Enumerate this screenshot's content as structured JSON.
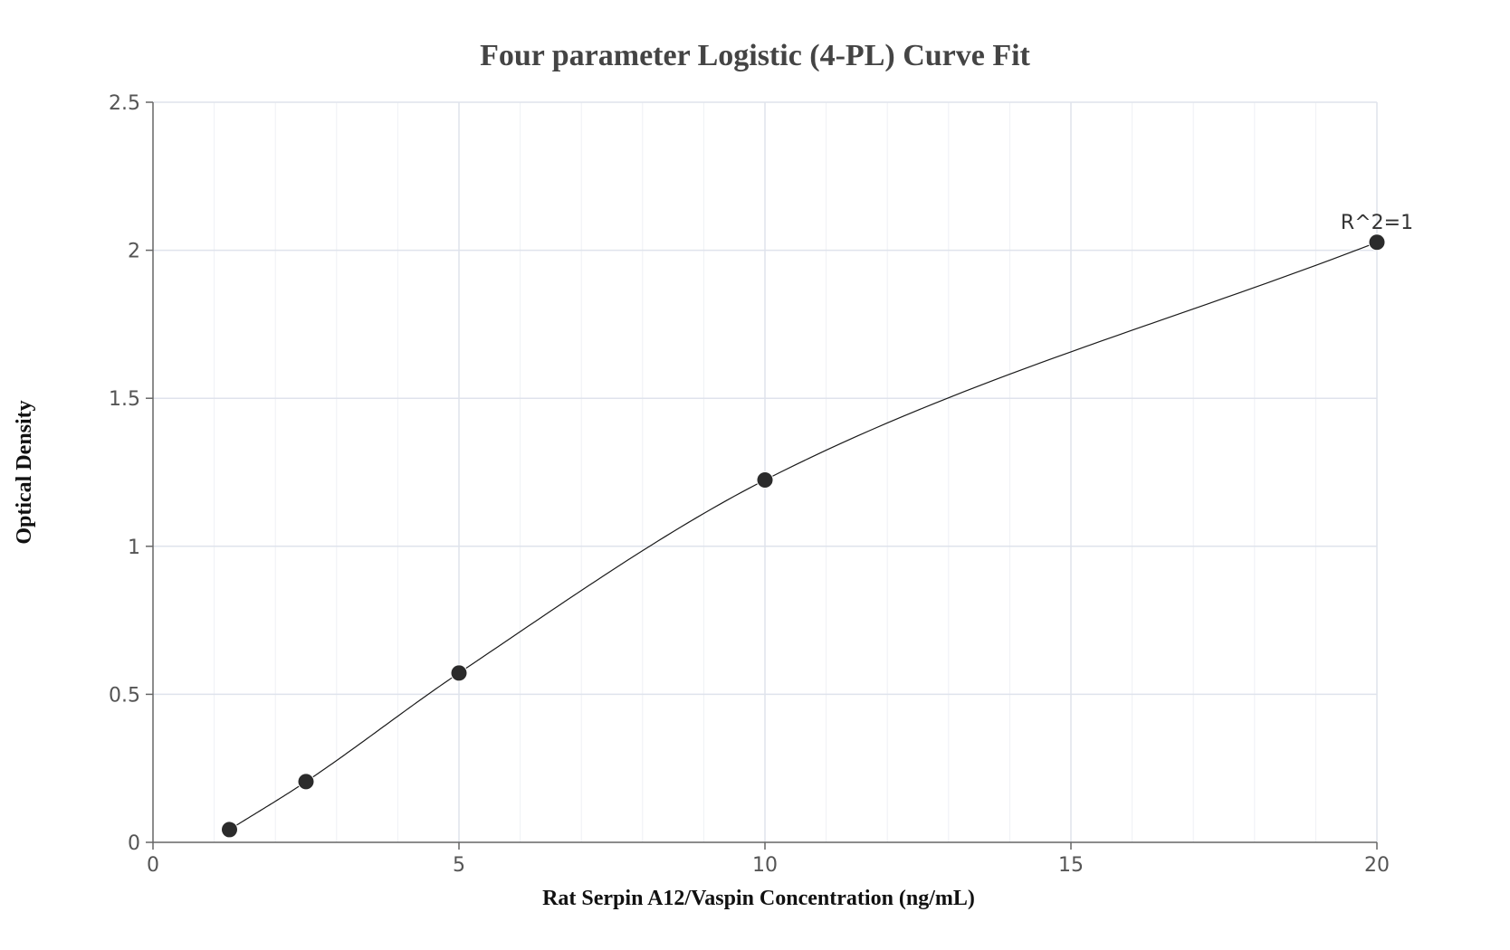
{
  "chart_data": {
    "type": "scatter",
    "title": "Four parameter Logistic (4-PL) Curve Fit",
    "xlabel": "Rat Serpin A12/Vaspin Concentration (ng/mL)",
    "ylabel": "Optical Density",
    "xlim": [
      0,
      20
    ],
    "ylim": [
      0,
      2.5
    ],
    "x_ticks": [
      0,
      5,
      10,
      15,
      20
    ],
    "x_tick_labels": [
      "0",
      "5",
      "10",
      "15",
      "20"
    ],
    "y_ticks": [
      0,
      0.5,
      1,
      1.5,
      2,
      2.5
    ],
    "y_tick_labels": [
      "0",
      "0.5",
      "1",
      "1.5",
      "2",
      "2.5"
    ],
    "grid": true,
    "series": [
      {
        "x": [
          1.25,
          2.5,
          5,
          10,
          20
        ],
        "y": [
          0.043,
          0.205,
          0.572,
          1.224,
          2.027
        ],
        "fit": "4-PL",
        "marker_color": "#2b2b2b",
        "line_color": "#1a1a1a"
      }
    ],
    "annotations": [
      {
        "text": "R^2=1",
        "x": 20,
        "y": 2.027
      }
    ]
  }
}
